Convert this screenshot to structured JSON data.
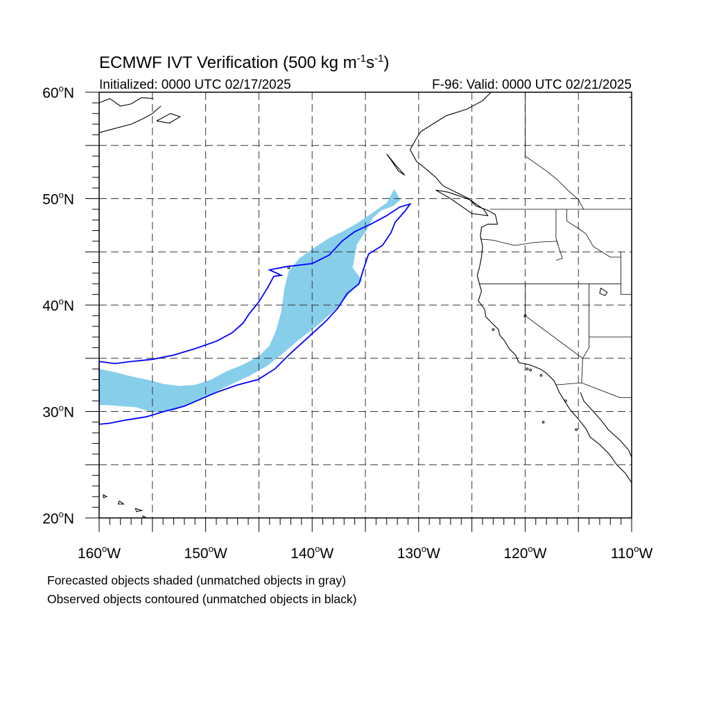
{
  "title": {
    "main": "ECMWF IVT Verification (500 kg m",
    "exp1": "-1",
    "mid": "s",
    "exp2": "-1",
    "close": ")"
  },
  "subtitle_left": "Initialized: 0000 UTC 02/17/2025",
  "subtitle_right": "F-96: Valid: 0000 UTC 02/21/2025",
  "map": {
    "lon_range": [
      -160,
      -110
    ],
    "lat_range": [
      20,
      60
    ],
    "grid_lon_step": 5,
    "grid_lat_step": 5,
    "lat_tick_labels": [
      {
        "lat": 60,
        "num": "60",
        "hem": "N"
      },
      {
        "lat": 50,
        "num": "50",
        "hem": "N"
      },
      {
        "lat": 40,
        "num": "40",
        "hem": "N"
      },
      {
        "lat": 30,
        "num": "30",
        "hem": "N"
      },
      {
        "lat": 20,
        "num": "20",
        "hem": "N"
      }
    ],
    "lon_tick_labels": [
      {
        "lon": -160,
        "num": "160",
        "hem": "W"
      },
      {
        "lon": -150,
        "num": "150",
        "hem": "W"
      },
      {
        "lon": -140,
        "num": "140",
        "hem": "W"
      },
      {
        "lon": -130,
        "num": "130",
        "hem": "W"
      },
      {
        "lon": -120,
        "num": "120",
        "hem": "W"
      },
      {
        "lon": -110,
        "num": "110",
        "hem": "W"
      }
    ],
    "forecast_fill_color": "#87ceeb",
    "observed_contour_color": "#0000ff",
    "coast_color": "#000000",
    "forecast_object": [
      [
        -160,
        34.0
      ],
      [
        -158.5,
        33.7
      ],
      [
        -157,
        33.3
      ],
      [
        -155.5,
        33.0
      ],
      [
        -154,
        32.6
      ],
      [
        -152.5,
        32.4
      ],
      [
        -151,
        32.5
      ],
      [
        -149.5,
        33.0
      ],
      [
        -148,
        33.8
      ],
      [
        -146.5,
        34.4
      ],
      [
        -145,
        35.2
      ],
      [
        -144,
        36.2
      ],
      [
        -143.4,
        37.6
      ],
      [
        -142.9,
        39.4
      ],
      [
        -142.6,
        41.6
      ],
      [
        -142.2,
        43.2
      ],
      [
        -141.2,
        44.4
      ],
      [
        -139.8,
        45.4
      ],
      [
        -138.4,
        46.3
      ],
      [
        -137,
        47.0
      ],
      [
        -135.6,
        47.8
      ],
      [
        -134.3,
        48.7
      ],
      [
        -133,
        49.6
      ],
      [
        -132.3,
        50.9
      ],
      [
        -131.7,
        49.9
      ],
      [
        -132.4,
        49.3
      ],
      [
        -133.5,
        48.9
      ],
      [
        -134.3,
        48.2
      ],
      [
        -134.9,
        47.0
      ],
      [
        -135.8,
        45.7
      ],
      [
        -136.2,
        43.5
      ],
      [
        -135.3,
        42.3
      ],
      [
        -136.4,
        41.2
      ],
      [
        -137.6,
        39.8
      ],
      [
        -138.8,
        38.7
      ],
      [
        -140,
        37.7
      ],
      [
        -141.3,
        36.7
      ],
      [
        -142.7,
        35.5
      ],
      [
        -144.2,
        34.3
      ],
      [
        -145.8,
        33.4
      ],
      [
        -147.5,
        32.6
      ],
      [
        -149.2,
        31.8
      ],
      [
        -151,
        30.9
      ],
      [
        -153,
        30.1
      ],
      [
        -155,
        29.9
      ],
      [
        -156.5,
        30.4
      ],
      [
        -158,
        30.5
      ],
      [
        -159.2,
        30.6
      ],
      [
        -160,
        30.6
      ]
    ],
    "observed_object": [
      [
        -160,
        34.7
      ],
      [
        -158.5,
        34.5
      ],
      [
        -157,
        34.7
      ],
      [
        -155,
        34.9
      ],
      [
        -153,
        35.3
      ],
      [
        -151,
        35.9
      ],
      [
        -149,
        36.6
      ],
      [
        -147.5,
        37.4
      ],
      [
        -146.5,
        38.3
      ],
      [
        -145.9,
        39.2
      ],
      [
        -145,
        40.3
      ],
      [
        -144.2,
        41.6
      ],
      [
        -143.6,
        42.7
      ],
      [
        -142.9,
        42.8
      ],
      [
        -144.0,
        43.3
      ],
      [
        -142.5,
        43.6
      ],
      [
        -140,
        43.9
      ],
      [
        -138.4,
        44.7
      ],
      [
        -137.2,
        46.0
      ],
      [
        -136.0,
        46.9
      ],
      [
        -134.5,
        47.6
      ],
      [
        -133.0,
        48.4
      ],
      [
        -131.8,
        49.2
      ],
      [
        -130.8,
        49.5
      ],
      [
        -131.3,
        48.8
      ],
      [
        -132.2,
        47.8
      ],
      [
        -132.6,
        46.8
      ],
      [
        -133.4,
        45.6
      ],
      [
        -134.7,
        44.8
      ],
      [
        -135.2,
        43.3
      ],
      [
        -135.6,
        42.0
      ],
      [
        -136.7,
        41.1
      ],
      [
        -137.6,
        39.7
      ],
      [
        -138.7,
        38.5
      ],
      [
        -139.8,
        37.5
      ],
      [
        -141.0,
        36.4
      ],
      [
        -142.2,
        35.3
      ],
      [
        -143.5,
        34.0
      ],
      [
        -145.1,
        33.0
      ],
      [
        -147.0,
        32.5
      ],
      [
        -149.0,
        31.8
      ],
      [
        -150.6,
        31.1
      ],
      [
        -152.0,
        30.5
      ],
      [
        -153.9,
        30.0
      ],
      [
        -155.6,
        29.5
      ],
      [
        -157.5,
        29.2
      ],
      [
        -159,
        28.9
      ],
      [
        -160,
        28.8
      ]
    ],
    "coastlines": [
      [
        [
          -123.2,
          60
        ],
        [
          -124.0,
          59.2
        ],
        [
          -125.5,
          58.4
        ],
        [
          -127.4,
          57.8
        ],
        [
          -128.7,
          57.0
        ],
        [
          -129.8,
          56.3
        ],
        [
          -130.3,
          55.5
        ],
        [
          -130.8,
          54.6
        ],
        [
          -130.2,
          53.5
        ],
        [
          -129.2,
          52.7
        ],
        [
          -128.4,
          52.0
        ],
        [
          -127.7,
          51.2
        ],
        [
          -126.5,
          50.6
        ],
        [
          -125.3,
          50.0
        ],
        [
          -124.6,
          49.3
        ],
        [
          -123.5,
          48.9
        ],
        [
          -122.8,
          48.5
        ],
        [
          -122.6,
          47.6
        ],
        [
          -123.5,
          47.6
        ],
        [
          -124.1,
          47.3
        ],
        [
          -124.2,
          46.5
        ],
        [
          -124.0,
          45.5
        ],
        [
          -124.1,
          44.5
        ],
        [
          -124.3,
          43.5
        ],
        [
          -124.5,
          42.8
        ],
        [
          -124.3,
          42.0
        ],
        [
          -124.1,
          41.3
        ],
        [
          -124.4,
          40.4
        ],
        [
          -123.8,
          39.6
        ],
        [
          -123.7,
          38.9
        ],
        [
          -123.1,
          38.3
        ],
        [
          -122.5,
          37.7
        ],
        [
          -122.4,
          37.2
        ],
        [
          -121.9,
          36.6
        ],
        [
          -121.5,
          35.9
        ],
        [
          -120.9,
          35.3
        ],
        [
          -120.6,
          34.6
        ],
        [
          -119.6,
          34.4
        ],
        [
          -118.6,
          34.0
        ],
        [
          -118.0,
          33.6
        ],
        [
          -117.3,
          32.9
        ],
        [
          -117.1,
          32.5
        ],
        [
          -116.8,
          31.8
        ],
        [
          -116.3,
          31.0
        ],
        [
          -115.8,
          30.2
        ],
        [
          -115.1,
          29.4
        ],
        [
          -114.3,
          28.4
        ],
        [
          -113.9,
          27.6
        ],
        [
          -113.0,
          26.9
        ],
        [
          -112.1,
          26.0
        ],
        [
          -111.4,
          25.0
        ],
        [
          -110.6,
          24.2
        ],
        [
          -110.0,
          23.3
        ]
      ],
      [
        [
          -114.8,
          31.8
        ],
        [
          -114.5,
          31.0
        ],
        [
          -113.6,
          30.0
        ],
        [
          -112.8,
          29.1
        ],
        [
          -112.2,
          28.3
        ],
        [
          -111.1,
          27.3
        ],
        [
          -110.3,
          26.4
        ],
        [
          -110,
          25.7
        ]
      ],
      [
        [
          -128.4,
          50.8
        ],
        [
          -127.0,
          50.0
        ],
        [
          -126.0,
          49.3
        ],
        [
          -125.0,
          48.6
        ],
        [
          -123.5,
          48.4
        ],
        [
          -123.9,
          49.0
        ],
        [
          -125.2,
          49.9
        ],
        [
          -127.2,
          50.6
        ],
        [
          -128.4,
          50.8
        ]
      ],
      [
        [
          -133.0,
          54.2
        ],
        [
          -132.2,
          53.2
        ],
        [
          -131.3,
          52.2
        ],
        [
          -131.9,
          52.6
        ],
        [
          -132.5,
          53.5
        ],
        [
          -133.0,
          54.2
        ]
      ],
      [
        [
          -160,
          59.0
        ],
        [
          -159.0,
          59.4
        ],
        [
          -158.0,
          58.7
        ],
        [
          -157.0,
          58.9
        ],
        [
          -156.0,
          59.5
        ],
        [
          -154.9,
          59.4
        ]
      ],
      [
        [
          -160,
          56.2
        ],
        [
          -158.5,
          56.6
        ],
        [
          -157.0,
          57.0
        ],
        [
          -155.9,
          57.5
        ],
        [
          -155.0,
          58.0
        ],
        [
          -154.2,
          58.7
        ]
      ],
      [
        [
          -154.6,
          57.3
        ],
        [
          -153.4,
          57.1
        ],
        [
          -152.4,
          57.7
        ],
        [
          -153.3,
          58.0
        ],
        [
          -154.6,
          57.3
        ]
      ],
      [
        [
          -110.2,
          59.5
        ],
        [
          -109.0,
          59.8
        ],
        [
          -109.0,
          60
        ]
      ],
      [
        [
          -159.6,
          22.2
        ],
        [
          -159.3,
          22.0
        ],
        [
          -159.6,
          21.9
        ],
        [
          -159.6,
          22.2
        ]
      ],
      [
        [
          -158.1,
          21.6
        ],
        [
          -157.7,
          21.3
        ],
        [
          -158.2,
          21.3
        ],
        [
          -158.1,
          21.6
        ]
      ],
      [
        [
          -156.6,
          20.9
        ],
        [
          -156.0,
          20.7
        ],
        [
          -156.5,
          20.6
        ],
        [
          -156.6,
          20.9
        ]
      ],
      [
        [
          -155.9,
          20.2
        ],
        [
          -155.0,
          19.7
        ],
        [
          -155.3,
          19.1
        ],
        [
          -155.9,
          19.3
        ],
        [
          -155.9,
          20.2
        ]
      ]
    ],
    "borders": [
      [
        [
          -120,
          60
        ],
        [
          -120,
          54.0
        ],
        [
          -119,
          53.3
        ],
        [
          -118,
          52.6
        ],
        [
          -117,
          51.8
        ],
        [
          -116,
          50.8
        ],
        [
          -115,
          49.9
        ],
        [
          -114.5,
          49
        ]
      ],
      [
        [
          -123.3,
          49
        ],
        [
          -110,
          49
        ]
      ],
      [
        [
          -124.2,
          46.2
        ],
        [
          -123,
          46.1
        ],
        [
          -121,
          45.6
        ],
        [
          -119,
          45.9
        ],
        [
          -117,
          46.0
        ],
        [
          -116.9,
          45.6
        ],
        [
          -116.5,
          44.4
        ],
        [
          -117.1,
          44.2
        ]
      ],
      [
        [
          -117.1,
          49
        ],
        [
          -117.1,
          46.3
        ],
        [
          -116.9,
          45.6
        ]
      ],
      [
        [
          -116.1,
          49
        ],
        [
          -116.1,
          47.9
        ],
        [
          -115.0,
          47.2
        ],
        [
          -114.3,
          46.7
        ],
        [
          -113.6,
          45.5
        ],
        [
          -112.0,
          44.5
        ],
        [
          -111.0,
          44.5
        ]
      ],
      [
        [
          -111,
          45.0
        ],
        [
          -111,
          41.0
        ],
        [
          -110,
          41.0
        ]
      ],
      [
        [
          -124.3,
          42
        ],
        [
          -111,
          42
        ]
      ],
      [
        [
          -120,
          42
        ],
        [
          -120,
          39
        ],
        [
          -114.6,
          35
        ]
      ],
      [
        [
          -114.0,
          42
        ],
        [
          -114.0,
          36.0
        ],
        [
          -114.6,
          35.0
        ]
      ],
      [
        [
          -114.0,
          37.0
        ],
        [
          -110,
          37.0
        ]
      ],
      [
        [
          -117.1,
          32.5
        ],
        [
          -114.7,
          32.7
        ],
        [
          -111.1,
          31.3
        ],
        [
          -110,
          31.3
        ]
      ],
      [
        [
          -114.6,
          35.0
        ],
        [
          -114.7,
          32.7
        ]
      ]
    ],
    "lakes": [
      [
        [
          -112.9,
          41.6
        ],
        [
          -112.3,
          41.2
        ],
        [
          -112.5,
          40.9
        ],
        [
          -113.0,
          41.1
        ],
        [
          -112.9,
          41.6
        ]
      ],
      [
        [
          -120.0,
          39.2
        ],
        [
          -119.9,
          39.0
        ],
        [
          -120.1,
          38.9
        ],
        [
          -120.0,
          39.2
        ]
      ]
    ],
    "small_islands": [
      [
        -118.5,
        33.4
      ],
      [
        -119.8,
        34.0
      ],
      [
        -119.5,
        33.9
      ],
      [
        -118.3,
        29.0
      ],
      [
        -115.2,
        28.3
      ],
      [
        -116.2,
        31.0
      ],
      [
        -123.0,
        37.7
      ],
      [
        -142.2,
        43.5
      ]
    ]
  },
  "legend": {
    "line1": "Forecasted objects shaded (unmatched objects in gray)",
    "line2": "Observed objects contoured (unmatched objects in black)"
  }
}
